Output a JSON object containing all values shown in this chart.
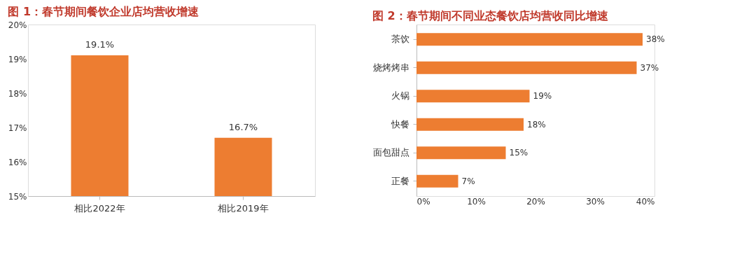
{
  "chart_data": [
    {
      "type": "bar",
      "title": "图 1：春节期间餐饮企业店均营收增速",
      "categories": [
        "相比2022年",
        "相比2019年"
      ],
      "values": [
        19.1,
        16.7
      ],
      "value_labels": [
        "19.1%",
        "16.7%"
      ],
      "color": "#ed7d31",
      "ylim": [
        15,
        20
      ],
      "yticks": [
        {
          "value": 15,
          "label": "15%"
        },
        {
          "value": 16,
          "label": "16%"
        },
        {
          "value": 17,
          "label": "17%"
        },
        {
          "value": 18,
          "label": "18%"
        },
        {
          "value": 19,
          "label": "19%"
        },
        {
          "value": 20,
          "label": "20%"
        }
      ],
      "grid": false
    },
    {
      "type": "bar",
      "orientation": "horizontal",
      "title": "图 2：春节期间不同业态餐饮店均营收同比增速",
      "categories": [
        "茶饮",
        "烧烤烤串",
        "火锅",
        "快餐",
        "面包甜点",
        "正餐"
      ],
      "values": [
        38,
        37,
        19,
        18,
        15,
        7
      ],
      "value_labels": [
        "38%",
        "37%",
        "19%",
        "18%",
        "15%",
        "7%"
      ],
      "color": "#ed7d31",
      "xlim": [
        0,
        40
      ],
      "xticks": [
        {
          "value": 0,
          "label": "0%"
        },
        {
          "value": 10,
          "label": "10%"
        },
        {
          "value": 20,
          "label": "20%"
        },
        {
          "value": 30,
          "label": "30%"
        },
        {
          "value": 40,
          "label": "40%"
        }
      ],
      "grid": false
    }
  ]
}
